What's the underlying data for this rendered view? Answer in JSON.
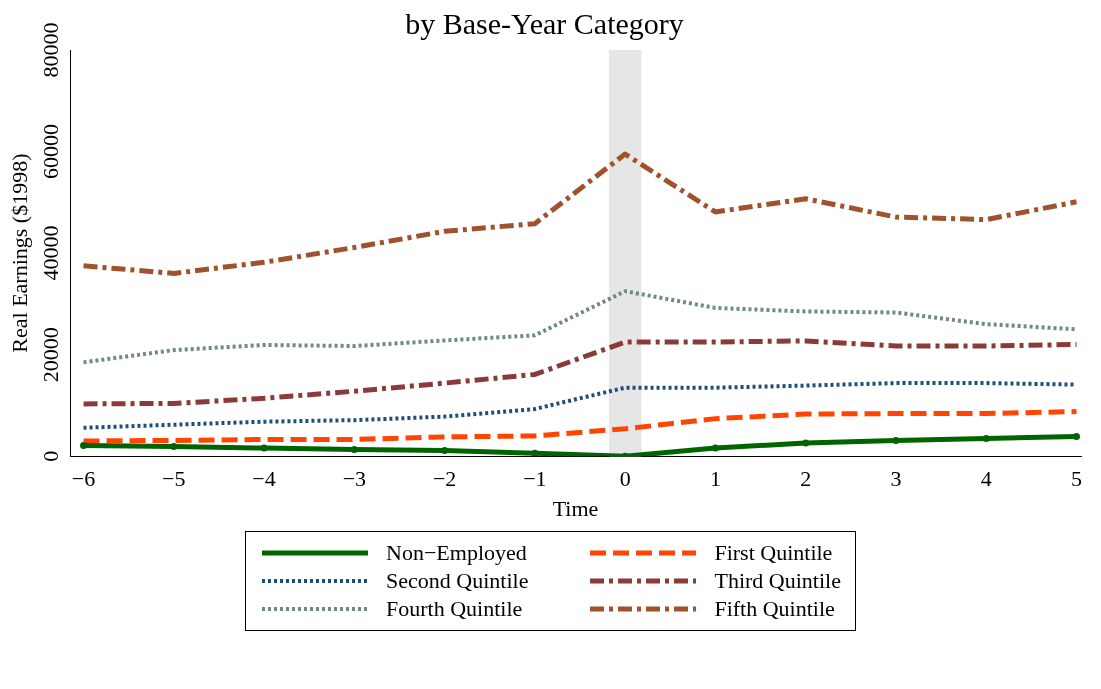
{
  "chart_data": {
    "type": "line",
    "title": "by Base-Year Category",
    "xlabel": "Time",
    "ylabel": "Real Earnings ($1998)",
    "x": [
      -6,
      -5,
      -4,
      -3,
      -2,
      -1,
      0,
      1,
      2,
      3,
      4,
      5
    ],
    "xlim": [
      -6.15,
      5.05
    ],
    "xticks": [
      {
        "value": -6,
        "label": "−6"
      },
      {
        "value": -5,
        "label": "−5"
      },
      {
        "value": -4,
        "label": "−4"
      },
      {
        "value": -3,
        "label": "−3"
      },
      {
        "value": -2,
        "label": "−2"
      },
      {
        "value": -1,
        "label": "−1"
      },
      0,
      1,
      2,
      3,
      4,
      5
    ],
    "ylim": [
      0,
      80000
    ],
    "yticks": [
      0,
      20000,
      40000,
      60000,
      80000
    ],
    "grid": false,
    "legend": "bottom",
    "bands": [
      {
        "axis": "x",
        "from": -0.18,
        "to": 0.18,
        "color": "#e6e6e6"
      }
    ],
    "series": [
      {
        "name": "Non−Employed",
        "color": "#006400",
        "line_style": "solid",
        "marker": "circle",
        "values": [
          2100,
          1900,
          1600,
          1300,
          1100,
          600,
          0,
          1600,
          2600,
          3100,
          3500,
          3900
        ]
      },
      {
        "name": "First Quintile",
        "color": "#ff4500",
        "line_style": "dashed",
        "marker": "none",
        "values": [
          3000,
          3100,
          3300,
          3300,
          3800,
          4000,
          5400,
          7400,
          8300,
          8400,
          8400,
          8800
        ]
      },
      {
        "name": "Second Quintile",
        "color": "#1f4e79",
        "line_style": "dotted",
        "marker": "none",
        "values": [
          5600,
          6200,
          6800,
          7100,
          7800,
          9300,
          13500,
          13500,
          13900,
          14400,
          14400,
          14100
        ]
      },
      {
        "name": "Third Quintile",
        "color": "#8b3a3a",
        "line_style": "dash-dot",
        "marker": "none",
        "values": [
          10300,
          10400,
          11400,
          12800,
          14400,
          16100,
          22500,
          22500,
          22700,
          21700,
          21700,
          22000
        ]
      },
      {
        "name": "Fourth Quintile",
        "color": "#6e8b7e",
        "line_style": "dotted",
        "marker": "none",
        "values": [
          18500,
          20900,
          21900,
          21700,
          22800,
          23800,
          32500,
          29200,
          28500,
          28300,
          26000,
          25000
        ]
      },
      {
        "name": "Fifth Quintile",
        "color": "#a0522d",
        "line_style": "dash-dot",
        "marker": "none",
        "values": [
          37500,
          36000,
          38200,
          41100,
          44300,
          45800,
          59500,
          48100,
          50700,
          47100,
          46600,
          50100
        ]
      }
    ]
  }
}
